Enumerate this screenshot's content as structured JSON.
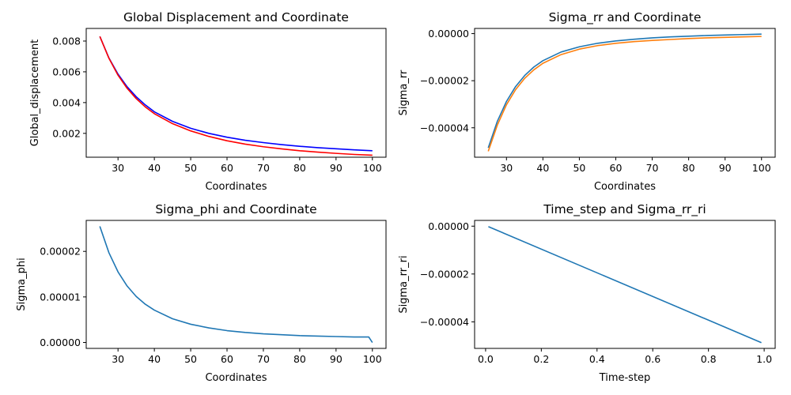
{
  "chart_data": [
    {
      "type": "line",
      "title": "Global Displacement and Coordinate",
      "xlabel": "Coordinates",
      "ylabel": "Global_displacement",
      "xlim": [
        21.25,
        103.75
      ],
      "ylim": [
        0.00045,
        0.00882
      ],
      "xticks": [
        30,
        40,
        50,
        60,
        70,
        80,
        90,
        100
      ],
      "yticks": [
        0.002,
        0.004,
        0.006,
        0.008
      ],
      "xtick_labels": [
        "30",
        "40",
        "50",
        "60",
        "70",
        "80",
        "90",
        "100"
      ],
      "ytick_labels": [
        "0.002",
        "0.004",
        "0.006",
        "0.008"
      ],
      "grid": false,
      "series": [
        {
          "color": "#0000ff",
          "x": [
            25,
            27.5,
            30,
            32.5,
            35,
            37.5,
            40,
            45,
            50,
            55,
            60,
            65,
            70,
            75,
            80,
            85,
            90,
            95,
            100
          ],
          "y": [
            0.0083,
            0.0069,
            0.00585,
            0.00503,
            0.00438,
            0.00385,
            0.0034,
            0.00278,
            0.00233,
            0.002,
            0.00175,
            0.00155,
            0.0014,
            0.00127,
            0.00116,
            0.00107,
            0.001,
            0.00093,
            0.00087
          ]
        },
        {
          "color": "#ff0000",
          "x": [
            25,
            27.5,
            30,
            32.5,
            35,
            37.5,
            40,
            45,
            50,
            55,
            60,
            65,
            70,
            75,
            80,
            85,
            90,
            95,
            100
          ],
          "y": [
            0.0083,
            0.00688,
            0.00578,
            0.00493,
            0.00426,
            0.00372,
            0.00328,
            0.00263,
            0.00216,
            0.0018,
            0.00152,
            0.0013,
            0.00113,
            0.00099,
            0.00087,
            0.00078,
            0.0007,
            0.00063,
            0.00058
          ]
        }
      ]
    },
    {
      "type": "line",
      "title": "Sigma_rr and Coordinate",
      "xlabel": "Coordinates",
      "ylabel": "Sigma_rr",
      "xlim": [
        21.25,
        103.75
      ],
      "ylim": [
        -5.25e-05,
        2.2e-06
      ],
      "xticks": [
        30,
        40,
        50,
        60,
        70,
        80,
        90,
        100
      ],
      "yticks": [
        0,
        -2e-05,
        -4e-05
      ],
      "xtick_labels": [
        "30",
        "40",
        "50",
        "60",
        "70",
        "80",
        "90",
        "100"
      ],
      "ytick_labels": [
        "0.00000",
        "−0.00002",
        "−0.00004"
      ],
      "grid": false,
      "series": [
        {
          "color": "#1f77b4",
          "x": [
            25,
            27.5,
            30,
            32.5,
            35,
            37.5,
            40,
            45,
            50,
            55,
            60,
            65,
            70,
            75,
            80,
            85,
            90,
            95,
            100
          ],
          "y": [
            -4.85e-05,
            -3.72e-05,
            -2.88e-05,
            -2.25e-05,
            -1.78e-05,
            -1.42e-05,
            -1.15e-05,
            -7.8e-06,
            -5.6e-06,
            -4.1e-06,
            -3.1e-06,
            -2.4e-06,
            -1.8e-06,
            -1.4e-06,
            -1.1e-06,
            -8e-07,
            -6e-07,
            -4e-07,
            -2e-07
          ]
        },
        {
          "color": "#ff7f0e",
          "x": [
            25,
            27.5,
            30,
            32.5,
            35,
            37.5,
            40,
            45,
            50,
            55,
            60,
            65,
            70,
            75,
            80,
            85,
            90,
            95,
            100
          ],
          "y": [
            -5e-05,
            -3.88e-05,
            -3.02e-05,
            -2.38e-05,
            -1.9e-05,
            -1.54e-05,
            -1.26e-05,
            -8.9e-06,
            -6.6e-06,
            -5.1e-06,
            -4.1e-06,
            -3.4e-06,
            -2.9e-06,
            -2.5e-06,
            -2.1e-06,
            -1.8e-06,
            -1.6e-06,
            -1.4e-06,
            -1.2e-06
          ]
        }
      ]
    },
    {
      "type": "line",
      "title": "Sigma_phi and Coordinate",
      "xlabel": "Coordinates",
      "ylabel": "Sigma_phi",
      "xlim": [
        21.25,
        103.75
      ],
      "ylim": [
        -1.3e-06,
        2.68e-05
      ],
      "xticks": [
        30,
        40,
        50,
        60,
        70,
        80,
        90,
        100
      ],
      "yticks": [
        0,
        1e-05,
        2e-05
      ],
      "xtick_labels": [
        "30",
        "40",
        "50",
        "60",
        "70",
        "80",
        "90",
        "100"
      ],
      "ytick_labels": [
        "0.00000",
        "0.00001",
        "0.00002"
      ],
      "grid": false,
      "series": [
        {
          "color": "#1f77b4",
          "x": [
            25,
            27.5,
            30,
            32.5,
            35,
            37.5,
            40,
            45,
            50,
            55,
            60,
            65,
            70,
            75,
            80,
            85,
            90,
            95,
            99,
            100
          ],
          "y": [
            2.55e-05,
            1.97e-05,
            1.55e-05,
            1.24e-05,
            1.01e-05,
            8.4e-06,
            7.1e-06,
            5.2e-06,
            4e-06,
            3.2e-06,
            2.6e-06,
            2.2e-06,
            1.9e-06,
            1.7e-06,
            1.5e-06,
            1.4e-06,
            1.3e-06,
            1.2e-06,
            1.2e-06,
            0
          ]
        }
      ]
    },
    {
      "type": "line",
      "title": "Time_step and Sigma_rr_ri",
      "xlabel": "Time-step",
      "ylabel": "Sigma_rr_ri",
      "xlim": [
        -0.0395,
        1.0395
      ],
      "ylim": [
        -5.11e-05,
        2.4e-06
      ],
      "xticks": [
        0,
        0.2,
        0.4,
        0.6,
        0.8,
        1.0
      ],
      "yticks": [
        0,
        -2e-05,
        -4e-05
      ],
      "xtick_labels": [
        "0.0",
        "0.2",
        "0.4",
        "0.6",
        "0.8",
        "1.0"
      ],
      "ytick_labels": [
        "0.00000",
        "−0.00002",
        "−0.00004"
      ],
      "grid": false,
      "series": [
        {
          "color": "#1f77b4",
          "x": [
            0.01,
            0.99
          ],
          "y": [
            -2e-07,
            -4.87e-05
          ]
        }
      ]
    }
  ]
}
